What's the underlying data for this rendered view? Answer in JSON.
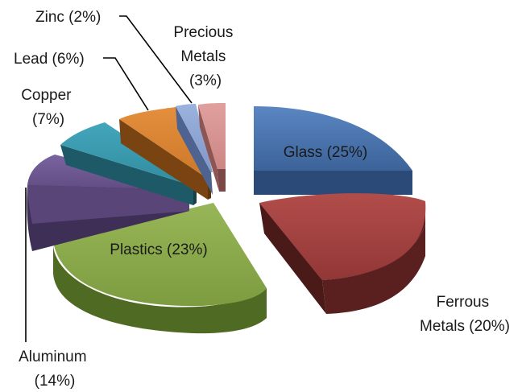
{
  "chart_data": {
    "type": "pie",
    "variant": "3d-exploded",
    "slices": [
      {
        "name": "Glass",
        "value": 25,
        "label": "Glass (25%)",
        "color": "#4a74ae",
        "side": "#2b4a78",
        "label_pos": "inside"
      },
      {
        "name": "Ferrous Metals",
        "value": 20,
        "label_lines": [
          "Ferrous",
          "Metals (20%)"
        ],
        "color": "#a54443",
        "side": "#5f2221",
        "label_pos": "outside"
      },
      {
        "name": "Plastics",
        "value": 23,
        "label": "Plastics (23%)",
        "color": "#89a94a",
        "side": "#4f6a23",
        "label_pos": "inside"
      },
      {
        "name": "Aluminum",
        "value": 14,
        "label_lines": [
          "Aluminum",
          "(14%)"
        ],
        "color": "#6e5791",
        "side": "#3e2f57",
        "label_pos": "outside-leader"
      },
      {
        "name": "Copper",
        "value": 7,
        "label_lines": [
          "Copper",
          "(7%)"
        ],
        "color": "#3a99ad",
        "side": "#1d5966",
        "label_pos": "outside"
      },
      {
        "name": "Lead",
        "value": 6,
        "label": "Lead (6%)",
        "color": "#d98332",
        "side": "#7a4412",
        "label_pos": "outside-leader"
      },
      {
        "name": "Zinc",
        "value": 2,
        "label": "Zinc (2%)",
        "color": "#8fa7d6",
        "side": "#4e6390",
        "label_pos": "outside-leader"
      },
      {
        "name": "Precious Metals",
        "value": 3,
        "label_lines": [
          "Precious",
          "Metals",
          "(3%)"
        ],
        "color": "#d89492",
        "side": "#8d5654",
        "label_pos": "outside"
      }
    ]
  }
}
